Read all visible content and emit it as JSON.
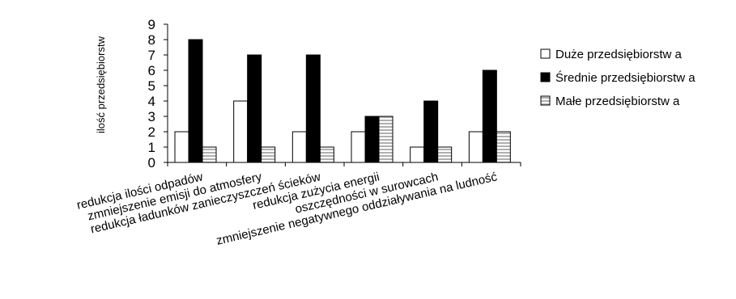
{
  "chart_data": {
    "type": "bar",
    "title": "",
    "xlabel": "",
    "ylabel": "ilość przedsiębiorstw",
    "ylim": [
      0,
      9
    ],
    "yticks": [
      0,
      1,
      2,
      3,
      4,
      5,
      6,
      7,
      8,
      9
    ],
    "grid": false,
    "legend_position": "right",
    "categories": [
      "redukcja ilości odpadów",
      "zmniejszenie emisji do atmosfery",
      "redukcja ładunków zanieczyszczeń ścieków",
      "redukcja zużycia energii",
      "oszczędności w surowcach",
      "zmniejszenie negatywnego oddziaływania na ludność"
    ],
    "series": [
      {
        "name": "Duże przedsiębiorstw a",
        "values": [
          2,
          4,
          2,
          2,
          1,
          2
        ],
        "fill": "white"
      },
      {
        "name": "Średnie przedsiębiorstw a",
        "values": [
          8,
          7,
          7,
          3,
          4,
          6
        ],
        "fill": "black"
      },
      {
        "name": "Małe przedsiębiorstw a",
        "values": [
          1,
          1,
          1,
          3,
          1,
          2
        ],
        "fill": "striped"
      }
    ]
  }
}
